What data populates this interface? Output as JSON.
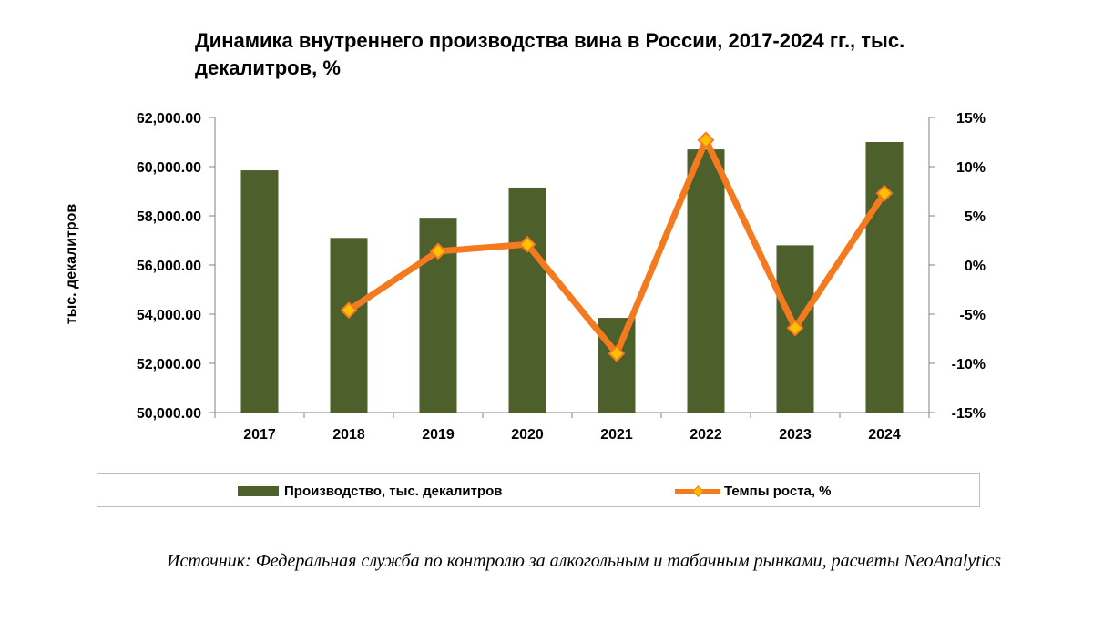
{
  "colors": {
    "bar": "#4d5f2a",
    "line": "#f47a20",
    "marker_fill": "#ffc000",
    "axis": "#808080",
    "text": "#000000"
  },
  "chart_data": {
    "type": "bar+line",
    "title": "Динамика внутреннего производства вина в России, 2017-2024 гг., тыс. декалитров, %",
    "xlabel": "",
    "ylabel": "тыс. декалитров",
    "categories": [
      "2017",
      "2018",
      "2019",
      "2020",
      "2021",
      "2022",
      "2023",
      "2024"
    ],
    "series": [
      {
        "name": "Производство, тыс. декалитров",
        "type": "bar",
        "axis": "left",
        "values": [
          59850,
          57100,
          57920,
          59150,
          53850,
          60700,
          56800,
          61000
        ]
      },
      {
        "name": "Темпы роста, %",
        "type": "line",
        "axis": "right",
        "values": [
          null,
          -4.6,
          1.4,
          2.1,
          -9.0,
          12.7,
          -6.4,
          7.3
        ]
      }
    ],
    "y_left": {
      "lim": [
        50000,
        62000
      ],
      "ticks": [
        50000,
        52000,
        54000,
        56000,
        58000,
        60000,
        62000
      ],
      "tick_labels": [
        "50,000.00",
        "52,000.00",
        "54,000.00",
        "56,000.00",
        "58,000.00",
        "60,000.00",
        "62,000.00"
      ]
    },
    "y_right": {
      "lim": [
        -15,
        15
      ],
      "ticks": [
        -15,
        -10,
        -5,
        0,
        5,
        10,
        15
      ],
      "tick_labels": [
        "-15%",
        "-10%",
        "-5%",
        "0%",
        "5%",
        "10%",
        "15%"
      ]
    },
    "legend_position": "bottom"
  },
  "title_text": "Динамика внутреннего производства вина в России, 2017-2024 гг., тыс. декалитров, %",
  "legend": {
    "bar_label": "Производство, тыс. декалитров",
    "line_label": "Темпы роста, %"
  },
  "source_text": "Источник: Федеральная служба по контролю за алкогольным и табачным рынками, расчеты NeoAnalytics"
}
